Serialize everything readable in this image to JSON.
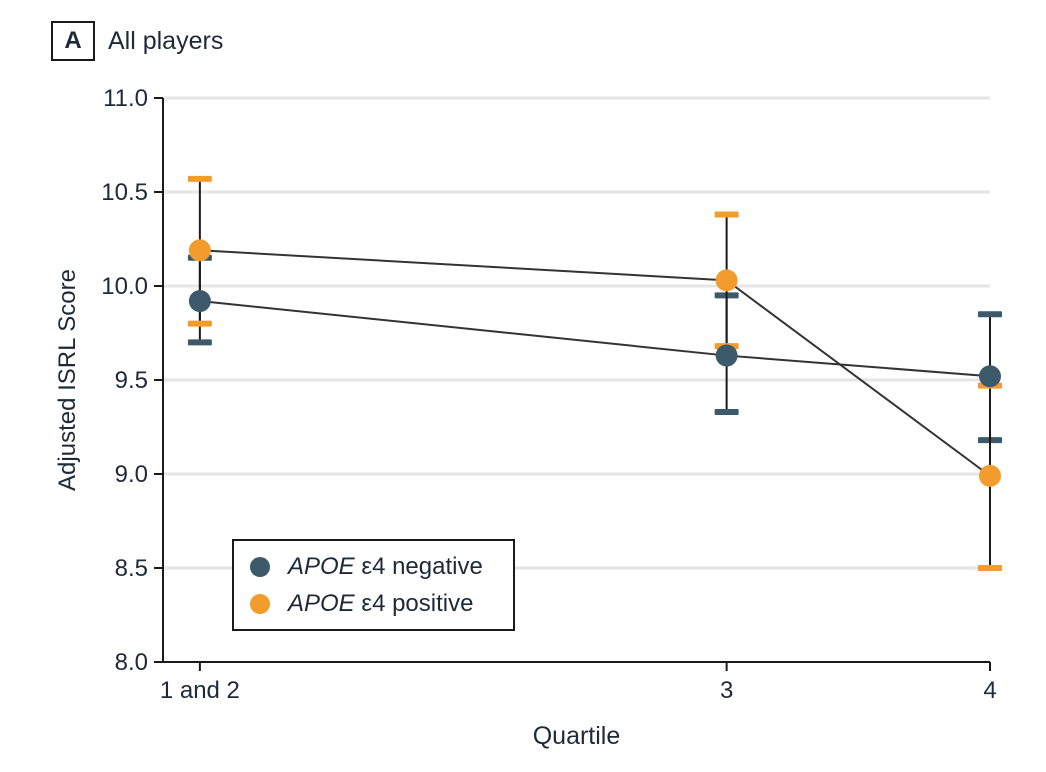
{
  "panel": {
    "label": "A",
    "title": "All players"
  },
  "chart_data": {
    "type": "line",
    "subtype": "points-with-error-bars",
    "title": "All players",
    "panel_label": "A",
    "xlabel": "Quartile",
    "ylabel": "Adjusted ISRL Score",
    "xlim": [
      0.86,
      4.0
    ],
    "ylim": [
      8.0,
      11.0
    ],
    "x_ticks": {
      "values": [
        1,
        3,
        4
      ],
      "labels": [
        "1 and 2",
        "3",
        "4"
      ]
    },
    "y_ticks": {
      "values": [
        8.0,
        8.5,
        9.0,
        9.5,
        10.0,
        10.5,
        11.0
      ],
      "labels": [
        "8.0",
        "8.5",
        "9.0",
        "9.5",
        "10.0",
        "10.5",
        "11.0"
      ]
    },
    "grid": {
      "horizontal": true,
      "vertical": false,
      "color": "#E5E5E5"
    },
    "legend": {
      "position": "inside-bottom-left",
      "border": true
    },
    "series": [
      {
        "name": "APOE ε4 negative",
        "label_italic": "APOE",
        "label_rest": " ε4 negative",
        "color": "#3D5A6B",
        "x": [
          1,
          3,
          4
        ],
        "y": [
          9.92,
          9.63,
          9.52
        ],
        "ci_low": [
          9.7,
          9.33,
          9.18
        ],
        "ci_high": [
          10.15,
          9.95,
          9.85
        ]
      },
      {
        "name": "APOE ε4 positive",
        "label_italic": "APOE",
        "label_rest": " ε4 positive",
        "color": "#F39C2E",
        "x": [
          1,
          3,
          4
        ],
        "y": [
          10.19,
          10.03,
          8.99
        ],
        "ci_low": [
          9.8,
          9.68,
          8.5
        ],
        "ci_high": [
          10.57,
          10.38,
          9.47
        ]
      }
    ],
    "style_colors": {
      "axis": "#1A1A1A",
      "error_bar_line": "#1A1A1A",
      "series_line": "#333333",
      "text": "#1E2A38"
    }
  }
}
